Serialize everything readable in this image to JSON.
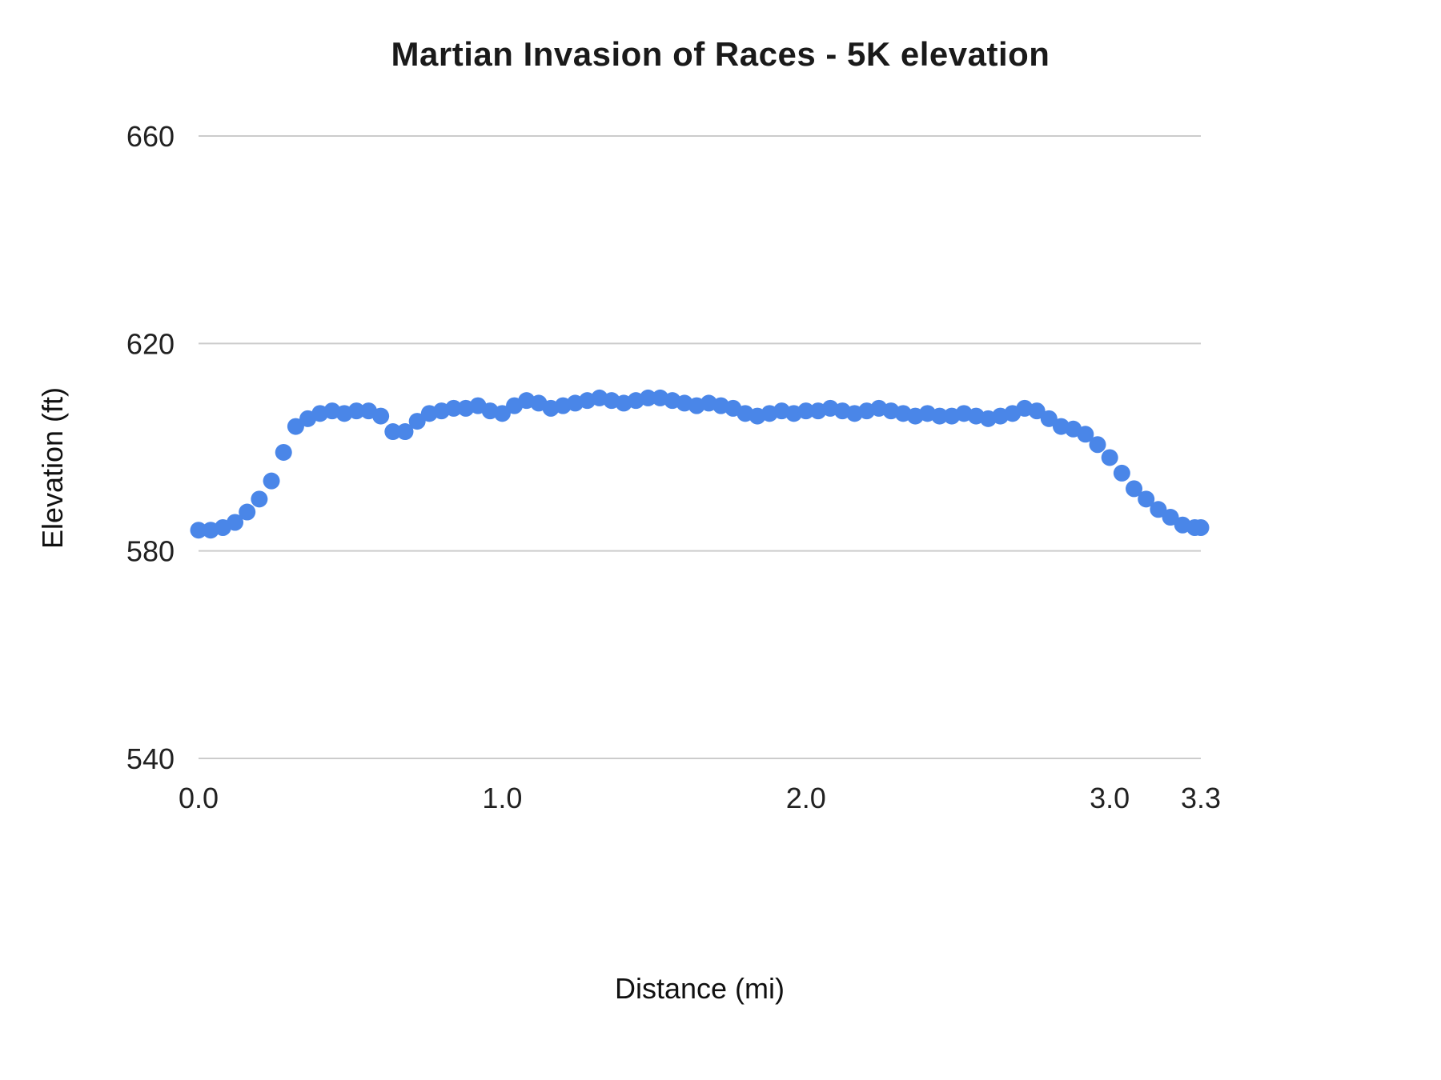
{
  "chart_data": {
    "type": "scatter",
    "title": "Martian Invasion of Races - 5K elevation",
    "xlabel": "Distance (mi)",
    "ylabel": "Elevation (ft)",
    "xlim": [
      0.0,
      3.3
    ],
    "ylim": [
      540,
      660
    ],
    "grid": "horizontal",
    "legend_position": "none",
    "yticks": [
      540,
      580,
      620,
      660
    ],
    "xticks": [
      {
        "value": 0.0,
        "label": "0.0"
      },
      {
        "value": 1.0,
        "label": "1.0"
      },
      {
        "value": 2.0,
        "label": "2.0"
      },
      {
        "value": 3.0,
        "label": "3.0"
      },
      {
        "value": 3.3,
        "label": "3.3"
      }
    ],
    "colors": {
      "point": "#4a86e8",
      "gridline": "#cccccc",
      "tick_text": "#212121"
    },
    "series": [
      {
        "name": "elevation",
        "x": [
          0.0,
          0.04,
          0.08,
          0.12,
          0.16,
          0.2,
          0.24,
          0.28,
          0.32,
          0.36,
          0.4,
          0.44,
          0.48,
          0.52,
          0.56,
          0.6,
          0.64,
          0.68,
          0.72,
          0.76,
          0.8,
          0.84,
          0.88,
          0.92,
          0.96,
          1.0,
          1.04,
          1.08,
          1.12,
          1.16,
          1.2,
          1.24,
          1.28,
          1.32,
          1.36,
          1.4,
          1.44,
          1.48,
          1.52,
          1.56,
          1.6,
          1.64,
          1.68,
          1.72,
          1.76,
          1.8,
          1.84,
          1.88,
          1.92,
          1.96,
          2.0,
          2.04,
          2.08,
          2.12,
          2.16,
          2.2,
          2.24,
          2.28,
          2.32,
          2.36,
          2.4,
          2.44,
          2.48,
          2.52,
          2.56,
          2.6,
          2.64,
          2.68,
          2.72,
          2.76,
          2.8,
          2.84,
          2.88,
          2.92,
          2.96,
          3.0,
          3.04,
          3.08,
          3.12,
          3.16,
          3.2,
          3.24,
          3.28,
          3.3
        ],
        "y": [
          584.0,
          584.0,
          584.5,
          585.5,
          587.5,
          590.0,
          593.5,
          599.0,
          604.0,
          605.5,
          606.5,
          607.0,
          606.5,
          607.0,
          607.0,
          606.0,
          603.0,
          603.0,
          605.0,
          606.5,
          607.0,
          607.5,
          607.5,
          608.0,
          607.0,
          606.5,
          608.0,
          609.0,
          608.5,
          607.5,
          608.0,
          608.5,
          609.0,
          609.5,
          609.0,
          608.5,
          609.0,
          609.5,
          609.5,
          609.0,
          608.5,
          608.0,
          608.5,
          608.0,
          607.5,
          606.5,
          606.0,
          606.5,
          607.0,
          606.5,
          607.0,
          607.0,
          607.5,
          607.0,
          606.5,
          607.0,
          607.5,
          607.0,
          606.5,
          606.0,
          606.5,
          606.0,
          606.0,
          606.5,
          606.0,
          605.5,
          606.0,
          606.5,
          607.5,
          607.0,
          605.5,
          604.0,
          603.5,
          602.5,
          600.5,
          598.0,
          595.0,
          592.0,
          590.0,
          588.0,
          586.5,
          585.0,
          584.5,
          584.5
        ]
      }
    ]
  }
}
